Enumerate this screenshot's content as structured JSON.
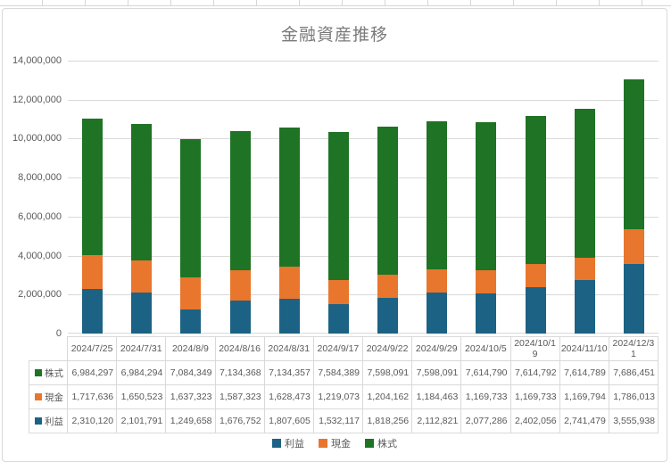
{
  "chart_data": {
    "type": "bar",
    "stacked": true,
    "title": "金融資産推移",
    "categories": [
      "2024/7/25",
      "2024/7/31",
      "2024/8/9",
      "2024/8/16",
      "2024/8/31",
      "2024/9/17",
      "2024/9/22",
      "2024/9/29",
      "2024/10/5",
      "2024/10/19",
      "2024/11/10",
      "2024/12/31"
    ],
    "series": [
      {
        "name": "利益",
        "color": "#1C6284",
        "values": [
          2310120,
          2101791,
          1249658,
          1676752,
          1807605,
          1532117,
          1818256,
          2112821,
          2077286,
          2402056,
          2741479,
          3555938
        ]
      },
      {
        "name": "現金",
        "color": "#E8762D",
        "values": [
          1717636,
          1650523,
          1637323,
          1587323,
          1628473,
          1219073,
          1204162,
          1184463,
          1169733,
          1169733,
          1169794,
          1786013
        ]
      },
      {
        "name": "株式",
        "color": "#1F7324",
        "values": [
          6984297,
          6984294,
          7084349,
          7134368,
          7134357,
          7584389,
          7598091,
          7598091,
          7614790,
          7614792,
          7614789,
          7686451
        ]
      }
    ],
    "ylim": [
      0,
      14000000
    ],
    "ytick_step": 2000000,
    "yticks": [
      "0",
      "2,000,000",
      "4,000,000",
      "6,000,000",
      "8,000,000",
      "10,000,000",
      "12,000,000",
      "14,000,000"
    ],
    "grid": true,
    "legend_position": "bottom",
    "legend_order": [
      "利益",
      "現金",
      "株式"
    ],
    "data_table_row_order": [
      "株式",
      "現金",
      "利益"
    ]
  },
  "style_colors": {
    "title_text": "#7a7a7a",
    "axis_text": "#595959",
    "gridline": "#d9d9d9",
    "table_border": "#d9d9d9"
  }
}
